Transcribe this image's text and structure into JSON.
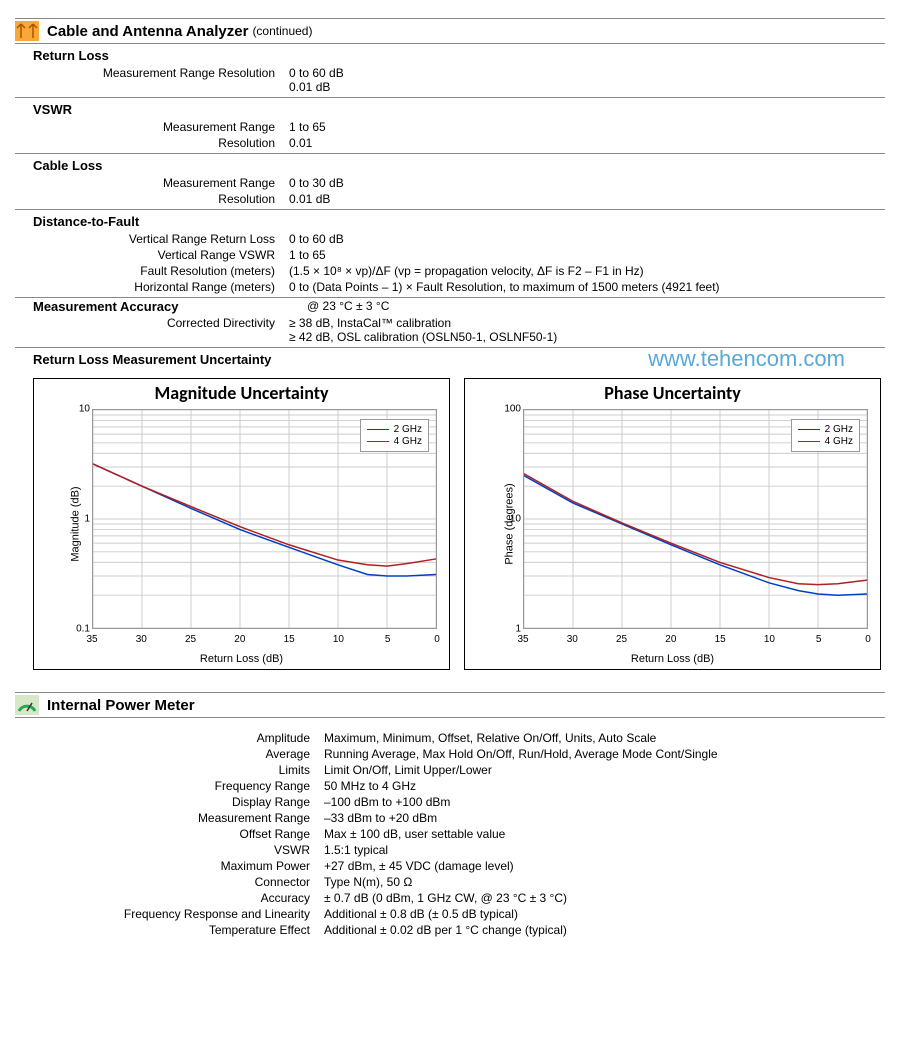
{
  "watermark": "www.tehencom.com",
  "section1": {
    "title": "Cable and Antenna Analyzer",
    "cont": "(continued)",
    "groups": [
      {
        "heading": "Return Loss",
        "rows": [
          {
            "label": "Measurement Range Resolution",
            "value": "0 to 60 dB\n0.01 dB"
          }
        ]
      },
      {
        "heading": "VSWR",
        "rows": [
          {
            "label": "Measurement Range",
            "value": "1 to 65"
          },
          {
            "label": "Resolution",
            "value": "0.01"
          }
        ]
      },
      {
        "heading": "Cable Loss",
        "rows": [
          {
            "label": "Measurement Range",
            "value": "0 to 30 dB"
          },
          {
            "label": "Resolution",
            "value": "0.01 dB"
          }
        ]
      },
      {
        "heading": "Distance-to-Fault",
        "rows": [
          {
            "label": "Vertical Range Return Loss",
            "value": "0 to 60 dB"
          },
          {
            "label": "Vertical Range VSWR",
            "value": "1 to 65"
          },
          {
            "label": "Fault Resolution (meters)",
            "value": "(1.5 × 10⁸ × vp)/ΔF (vp = propagation velocity, ΔF is F2 – F1 in Hz)"
          },
          {
            "label": "Horizontal Range (meters)",
            "value": "0 to (Data Points – 1) × Fault Resolution, to maximum of 1500 meters (4921 feet)"
          }
        ]
      },
      {
        "heading_inline": true,
        "heading": "Measurement Accuracy",
        "heading_value": "@ 23 °C ± 3 °C",
        "rows": [
          {
            "label": "Corrected Directivity",
            "value": "≥ 38 dB, InstaCal™ calibration\n≥ 42 dB, OSL calibration (OSLN50-1, OSLNF50-1)"
          }
        ]
      }
    ],
    "uncertainty_heading": "Return Loss Measurement Uncertainty"
  },
  "charts": {
    "colors": {
      "s1": "#0040c0",
      "s2": "#b02020",
      "grid": "#cccccc",
      "border": "#999999"
    },
    "x_ticks": [
      35,
      30,
      25,
      20,
      15,
      10,
      5,
      0
    ],
    "x_label": "Return Loss (dB)",
    "legend": [
      {
        "label": "2 GHz",
        "colorkey": "s1"
      },
      {
        "label": "4 GHz",
        "colorkey": "s2"
      }
    ],
    "left": {
      "title": "Magnitude Uncertainty",
      "y_label": "Magnitude (dB)",
      "y_ticks": [
        0.1,
        1,
        10
      ],
      "y_log_range": [
        0.1,
        10
      ],
      "series": [
        {
          "colorkey": "s1",
          "points": [
            [
              35,
              3.2
            ],
            [
              30,
              2.0
            ],
            [
              25,
              1.25
            ],
            [
              20,
              0.8
            ],
            [
              15,
              0.55
            ],
            [
              10,
              0.38
            ],
            [
              7,
              0.31
            ],
            [
              5,
              0.3
            ],
            [
              3,
              0.3
            ],
            [
              0,
              0.31
            ]
          ]
        },
        {
          "colorkey": "s2",
          "points": [
            [
              35,
              3.2
            ],
            [
              30,
              2.0
            ],
            [
              25,
              1.3
            ],
            [
              20,
              0.85
            ],
            [
              15,
              0.58
            ],
            [
              10,
              0.42
            ],
            [
              7,
              0.38
            ],
            [
              5,
              0.37
            ],
            [
              3,
              0.39
            ],
            [
              0,
              0.43
            ]
          ]
        }
      ]
    },
    "right": {
      "title": "Phase Uncertainty",
      "y_label": "Phase (degrees)",
      "y_ticks": [
        1,
        10,
        100
      ],
      "y_log_range": [
        1,
        100
      ],
      "series": [
        {
          "colorkey": "s1",
          "points": [
            [
              35,
              25
            ],
            [
              30,
              14
            ],
            [
              25,
              9
            ],
            [
              20,
              5.8
            ],
            [
              15,
              3.8
            ],
            [
              10,
              2.6
            ],
            [
              7,
              2.2
            ],
            [
              5,
              2.05
            ],
            [
              3,
              2.0
            ],
            [
              0,
              2.05
            ]
          ]
        },
        {
          "colorkey": "s2",
          "points": [
            [
              35,
              26
            ],
            [
              30,
              14.5
            ],
            [
              25,
              9.2
            ],
            [
              20,
              6.0
            ],
            [
              15,
              4.0
            ],
            [
              10,
              2.9
            ],
            [
              7,
              2.55
            ],
            [
              5,
              2.5
            ],
            [
              3,
              2.55
            ],
            [
              0,
              2.75
            ]
          ]
        }
      ]
    }
  },
  "section2": {
    "title": "Internal Power Meter",
    "rows": [
      {
        "label": "Amplitude",
        "value": "Maximum, Minimum, Offset, Relative On/Off, Units, Auto Scale"
      },
      {
        "label": "Average",
        "value": "Running Average, Max Hold On/Off, Run/Hold, Average Mode Cont/Single"
      },
      {
        "label": "Limits",
        "value": "Limit On/Off, Limit Upper/Lower"
      },
      {
        "label": "Frequency Range",
        "value": "50 MHz to 4 GHz"
      },
      {
        "label": "Display Range",
        "value": "–100 dBm to +100 dBm"
      },
      {
        "label": "Measurement Range",
        "value": "–33 dBm to +20 dBm"
      },
      {
        "label": "Offset Range",
        "value": "Max ± 100 dB, user settable value"
      },
      {
        "label": "VSWR",
        "value": "1.5:1 typical"
      },
      {
        "label": "Maximum Power",
        "value": "+27 dBm, ± 45 VDC (damage level)"
      },
      {
        "label": "Connector",
        "value": "Type N(m), 50 Ω"
      },
      {
        "label": "Accuracy",
        "value": "± 0.7 dB (0 dBm, 1 GHz CW, @ 23 °C ± 3 °C)"
      },
      {
        "label": "Frequency Response and Linearity",
        "value": "Additional ± 0.8 dB (± 0.5 dB typical)"
      },
      {
        "label": "Temperature Effect",
        "value": "Additional ± 0.02 dB per 1 °C change (typical)"
      }
    ]
  }
}
